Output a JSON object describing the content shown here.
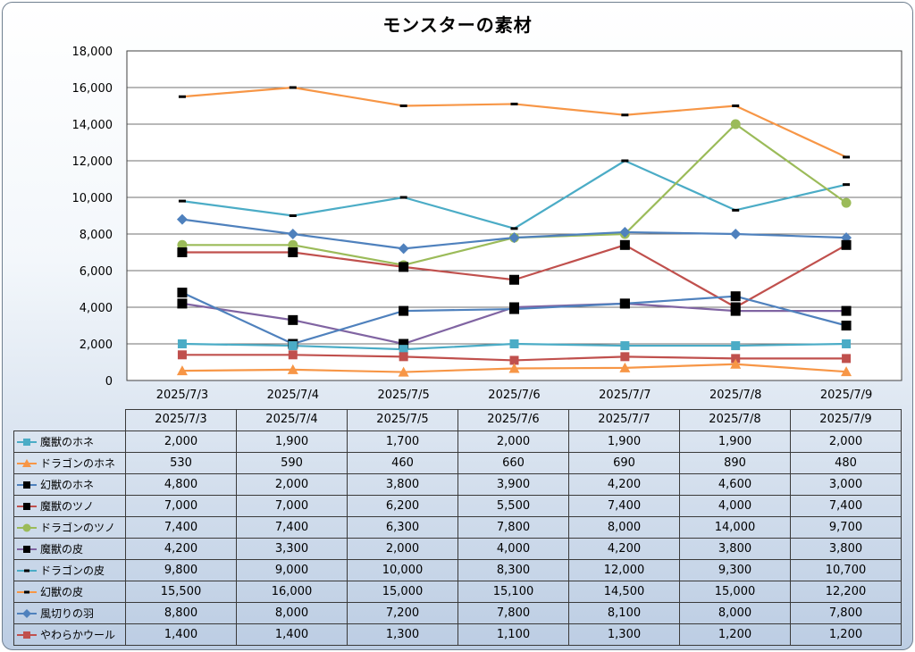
{
  "chart_data": {
    "type": "line",
    "title": "モンスターの素材",
    "categories": [
      "2025/7/3",
      "2025/7/4",
      "2025/7/5",
      "2025/7/6",
      "2025/7/7",
      "2025/7/8",
      "2025/7/9"
    ],
    "ylim": [
      0,
      18000
    ],
    "yticks": [
      0,
      2000,
      4000,
      6000,
      8000,
      10000,
      12000,
      14000,
      16000,
      18000
    ],
    "ytick_labels": [
      "0",
      "2,000",
      "4,000",
      "6,000",
      "8,000",
      "10,000",
      "12,000",
      "14,000",
      "16,000",
      "18,000"
    ],
    "grid": true,
    "legend": "data table below chart",
    "series": [
      {
        "name": "魔獣のホネ",
        "color": "#4bacc6",
        "marker": "square",
        "display": [
          "2,000",
          "1,900",
          "1,700",
          "2,000",
          "1,900",
          "1,900",
          "2,000"
        ],
        "values": [
          2000,
          1900,
          1700,
          2000,
          1900,
          1900,
          2000
        ]
      },
      {
        "name": "ドラゴンのホネ",
        "color": "#f79646",
        "marker": "triangle",
        "display": [
          "530",
          "590",
          "460",
          "660",
          "690",
          "890",
          "480"
        ],
        "values": [
          530,
          590,
          460,
          660,
          690,
          890,
          480
        ]
      },
      {
        "name": "幻獣のホネ",
        "color": "#4f81bd",
        "marker": "blacksquare",
        "display": [
          "4,800",
          "2,000",
          "3,800",
          "3,900",
          "4,200",
          "4,600",
          "3,000"
        ],
        "values": [
          4800,
          2000,
          3800,
          3900,
          4200,
          4600,
          3000
        ]
      },
      {
        "name": "魔獣のツノ",
        "color": "#c0504d",
        "marker": "blacksquare",
        "display": [
          "7,000",
          "7,000",
          "6,200",
          "5,500",
          "7,400",
          "4,000",
          "7,400"
        ],
        "values": [
          7000,
          7000,
          6200,
          5500,
          7400,
          4000,
          7400
        ]
      },
      {
        "name": "ドラゴンのツノ",
        "color": "#9bbb59",
        "marker": "circle",
        "display": [
          "7,400",
          "7,400",
          "6,300",
          "7,800",
          "8,000",
          "14,000",
          "9,700"
        ],
        "values": [
          7400,
          7400,
          6300,
          7800,
          8000,
          14000,
          9700
        ]
      },
      {
        "name": "魔獣の皮",
        "color": "#8064a2",
        "marker": "blacksquare",
        "display": [
          "4,200",
          "3,300",
          "2,000",
          "4,000",
          "4,200",
          "3,800",
          "3,800"
        ],
        "values": [
          4200,
          3300,
          2000,
          4000,
          4200,
          3800,
          3800
        ]
      },
      {
        "name": "ドラゴンの皮",
        "color": "#4bacc6",
        "marker": "dash",
        "display": [
          "9,800",
          "9,000",
          "10,000",
          "8,300",
          "12,000",
          "9,300",
          "10,700"
        ],
        "values": [
          9800,
          9000,
          10000,
          8300,
          12000,
          9300,
          10700
        ]
      },
      {
        "name": "幻獣の皮",
        "color": "#f79646",
        "marker": "dash",
        "display": [
          "15,500",
          "16,000",
          "15,000",
          "15,100",
          "14,500",
          "15,000",
          "12,200"
        ],
        "values": [
          15500,
          16000,
          15000,
          15100,
          14500,
          15000,
          12200
        ]
      },
      {
        "name": "風切りの羽",
        "color": "#4f81bd",
        "marker": "diamond",
        "display": [
          "8,800",
          "8,000",
          "7,200",
          "7,800",
          "8,100",
          "8,000",
          "7,800"
        ],
        "values": [
          8800,
          8000,
          7200,
          7800,
          8100,
          8000,
          7800
        ]
      },
      {
        "name": "やわらかウール",
        "color": "#c0504d",
        "marker": "square",
        "display": [
          "1,400",
          "1,400",
          "1,300",
          "1,100",
          "1,300",
          "1,200",
          "1,200"
        ],
        "values": [
          1400,
          1400,
          1300,
          1100,
          1300,
          1200,
          1200
        ]
      }
    ]
  }
}
